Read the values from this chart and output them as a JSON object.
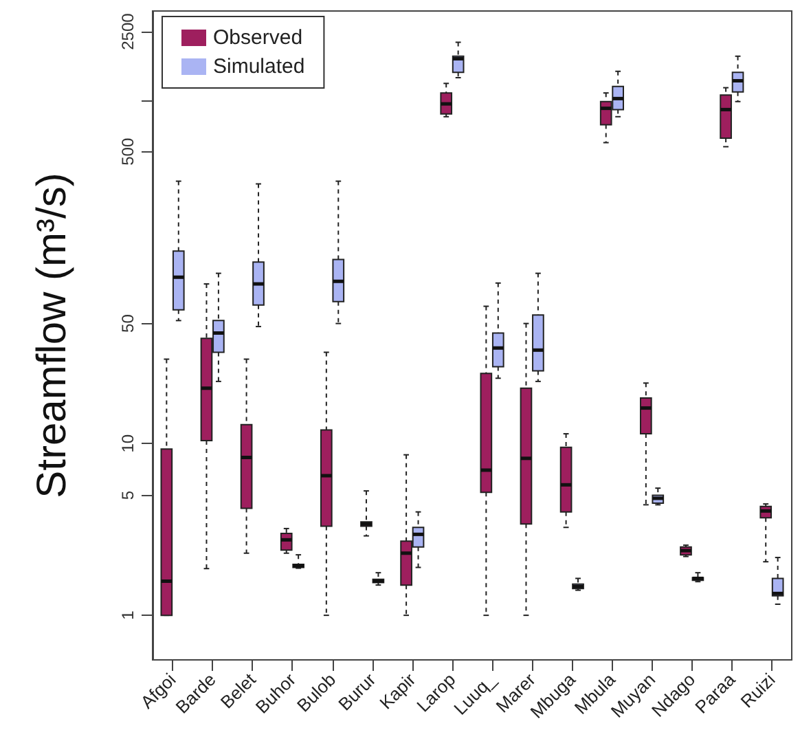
{
  "chart_data": {
    "type": "box",
    "ylabel": "Streamflow (m³/s)",
    "categories": [
      "Afgoi",
      "Barde",
      "Belet",
      "Buhor",
      "Bulob",
      "Burur",
      "Kapir",
      "Larop",
      "Luuq_",
      "Marer",
      "Mbuga",
      "Mbula",
      "Muyan",
      "Ndago",
      "Paraa",
      "Ruizi"
    ],
    "series": [
      {
        "name": "Observed",
        "color": "#9e1f5e",
        "boxes": [
          {
            "low": 1,
            "q1": 1,
            "median": 1.58,
            "q3": 9.3,
            "high": 31
          },
          {
            "low": 1.87,
            "q1": 10.4,
            "median": 21,
            "q3": 41,
            "high": 85
          },
          {
            "low": 2.3,
            "q1": 4.2,
            "median": 8.3,
            "q3": 12.9,
            "high": 31
          },
          {
            "low": 2.3,
            "q1": 2.4,
            "median": 2.75,
            "q3": 3.0,
            "high": 3.2
          },
          {
            "low": 1,
            "q1": 3.3,
            "median": 6.5,
            "q3": 12,
            "high": 34
          },
          {
            "low": 2.9,
            "q1": 3.3,
            "median": 3.4,
            "q3": 3.5,
            "high": 5.3
          },
          {
            "low": 1,
            "q1": 1.5,
            "median": 2.3,
            "q3": 2.7,
            "high": 8.6
          },
          {
            "low": 800,
            "q1": 830,
            "median": 950,
            "q3": 1100,
            "high": 1250
          },
          {
            "low": 1,
            "q1": 5.2,
            "median": 7,
            "q3": 25.6,
            "high": 63
          },
          {
            "low": 1,
            "q1": 3.4,
            "median": 8.2,
            "q3": 21,
            "high": 50
          },
          {
            "low": 3.25,
            "q1": 4,
            "median": 5.75,
            "q3": 9.5,
            "high": 11.4
          },
          {
            "low": 565,
            "q1": 718,
            "median": 895,
            "q3": 980,
            "high": 1100
          },
          {
            "low": 4.4,
            "q1": 11.4,
            "median": 16.1,
            "q3": 18.4,
            "high": 22.5
          },
          {
            "low": 2.2,
            "q1": 2.25,
            "median": 2.38,
            "q3": 2.5,
            "high": 2.56
          },
          {
            "low": 535,
            "q1": 600,
            "median": 880,
            "q3": 1070,
            "high": 1180
          },
          {
            "low": 2.05,
            "q1": 3.7,
            "median": 4.05,
            "q3": 4.3,
            "high": 4.45
          }
        ]
      },
      {
        "name": "Simulated",
        "color": "#aab4f3",
        "boxes": [
          {
            "low": 52,
            "q1": 60,
            "median": 93,
            "q3": 132,
            "high": 337
          },
          {
            "low": 23,
            "q1": 34,
            "median": 44,
            "q3": 52,
            "high": 98
          },
          {
            "low": 48,
            "q1": 64,
            "median": 85,
            "q3": 114,
            "high": 325
          },
          {
            "low": 1.88,
            "q1": 1.9,
            "median": 1.94,
            "q3": 1.98,
            "high": 2.25
          },
          {
            "low": 50,
            "q1": 67,
            "median": 88,
            "q3": 118,
            "high": 337
          },
          {
            "low": 1.5,
            "q1": 1.55,
            "median": 1.58,
            "q3": 1.62,
            "high": 1.77
          },
          {
            "low": 1.9,
            "q1": 2.5,
            "median": 2.96,
            "q3": 3.25,
            "high": 4.0
          },
          {
            "low": 1350,
            "q1": 1450,
            "median": 1740,
            "q3": 1800,
            "high": 2170
          },
          {
            "low": 24,
            "q1": 28,
            "median": 36,
            "q3": 44,
            "high": 86
          },
          {
            "low": 23,
            "q1": 26.5,
            "median": 35,
            "q3": 56,
            "high": 98
          },
          {
            "low": 1.4,
            "q1": 1.43,
            "median": 1.47,
            "q3": 1.52,
            "high": 1.64
          },
          {
            "low": 800,
            "q1": 880,
            "median": 1020,
            "q3": 1200,
            "high": 1470
          },
          {
            "low": 4.4,
            "q1": 4.5,
            "median": 4.8,
            "q3": 5.0,
            "high": 5.5
          },
          {
            "low": 1.57,
            "q1": 1.6,
            "median": 1.64,
            "q3": 1.66,
            "high": 1.77
          },
          {
            "low": 980,
            "q1": 1115,
            "median": 1295,
            "q3": 1450,
            "high": 1800
          },
          {
            "low": 1.16,
            "q1": 1.3,
            "median": 1.34,
            "q3": 1.64,
            "high": 2.17
          }
        ]
      }
    ],
    "ylim": [
      0.55,
      3300
    ],
    "yticks": [
      1,
      5,
      10,
      50,
      500,
      {
        "value": 1000,
        "label": null
      },
      2500
    ],
    "log": "y",
    "grid": false,
    "legend": "top left"
  }
}
